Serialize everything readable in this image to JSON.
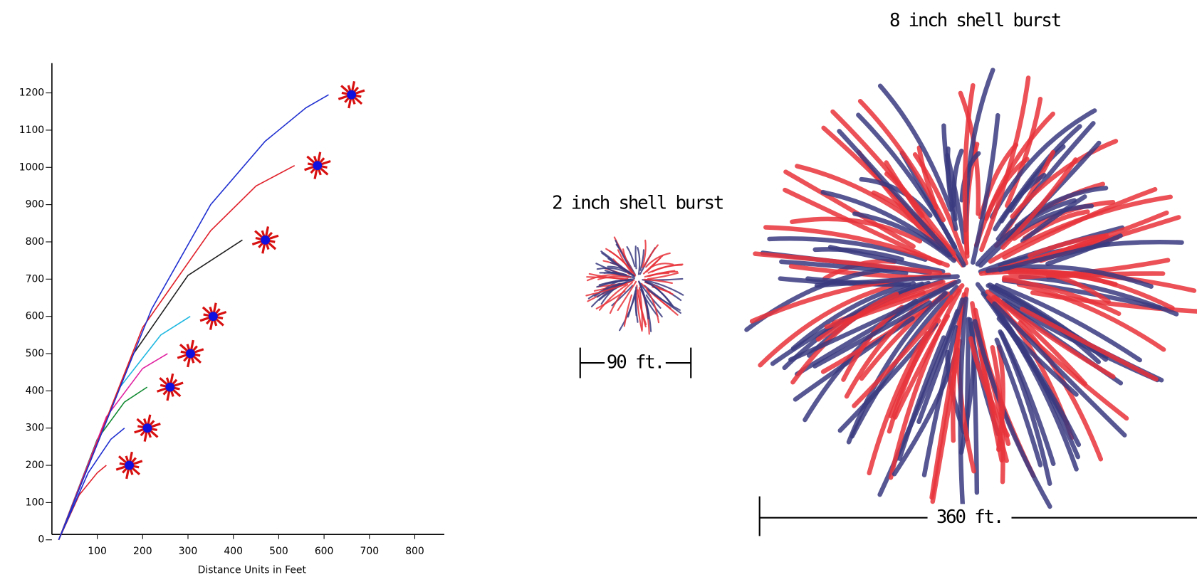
{
  "chart_data": {
    "type": "line",
    "xlabel": "Distance Units in Feet",
    "xlim": [
      0,
      860
    ],
    "ylim": [
      0,
      1280
    ],
    "xticks": [
      100,
      200,
      300,
      400,
      500,
      600,
      700,
      800
    ],
    "yticks": [
      0,
      100,
      200,
      300,
      400,
      500,
      600,
      700,
      800,
      900,
      1000,
      1100,
      1200
    ],
    "series": [
      {
        "color": "#e0202a",
        "x": [
          15,
          60,
          100,
          120
        ],
        "values": [
          0,
          120,
          180,
          200
        ]
      },
      {
        "color": "#2030d0",
        "x": [
          15,
          80,
          130,
          160
        ],
        "values": [
          0,
          180,
          270,
          300
        ]
      },
      {
        "color": "#108a30",
        "x": [
          15,
          100,
          160,
          210
        ],
        "values": [
          0,
          270,
          370,
          410
        ]
      },
      {
        "color": "#e020a0",
        "x": [
          15,
          120,
          200,
          255
        ],
        "values": [
          0,
          330,
          460,
          500
        ]
      },
      {
        "color": "#20b8e0",
        "x": [
          15,
          150,
          240,
          305
        ],
        "values": [
          0,
          410,
          550,
          600
        ]
      },
      {
        "color": "#202020",
        "x": [
          15,
          180,
          300,
          420
        ],
        "values": [
          0,
          500,
          710,
          805
        ]
      },
      {
        "color": "#e0202a",
        "x": [
          15,
          200,
          350,
          450,
          535
        ],
        "values": [
          0,
          570,
          830,
          950,
          1005
        ]
      },
      {
        "color": "#2030d0",
        "x": [
          15,
          220,
          350,
          470,
          560,
          610
        ],
        "values": [
          0,
          620,
          900,
          1070,
          1160,
          1195
        ]
      }
    ]
  },
  "illustrations": {
    "small": {
      "title": "2 inch shell burst",
      "scale_label": "90 ft."
    },
    "large": {
      "title": "8 inch shell burst",
      "scale_label": "360 ft."
    }
  }
}
